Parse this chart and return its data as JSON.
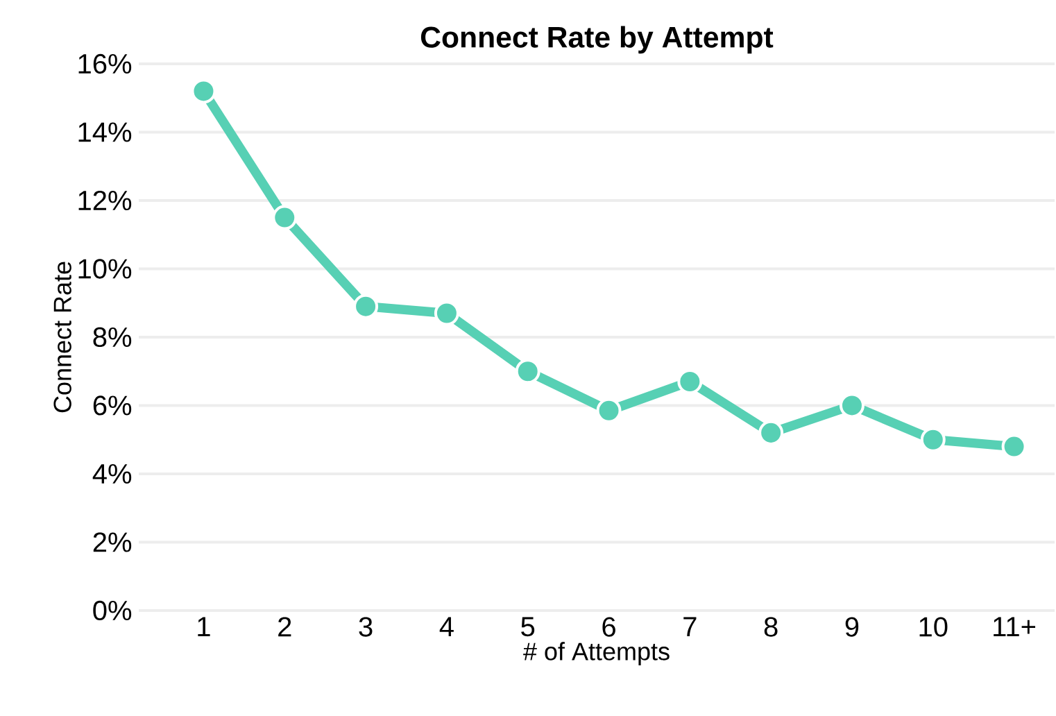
{
  "chart_data": {
    "type": "line",
    "title": "Connect Rate by Attempt",
    "xlabel": "# of Attempts",
    "ylabel": "Connect Rate",
    "categories": [
      "1",
      "2",
      "3",
      "4",
      "5",
      "6",
      "7",
      "8",
      "9",
      "10",
      "11+"
    ],
    "series": [
      {
        "color": "#57d0b4",
        "values": [
          15.2,
          11.5,
          8.9,
          8.7,
          7.0,
          5.85,
          6.7,
          5.2,
          6.0,
          5.0,
          4.8
        ]
      }
    ],
    "ylim": [
      0,
      16
    ],
    "yticks": [
      {
        "value": 0,
        "label": "0%"
      },
      {
        "value": 2,
        "label": "2%"
      },
      {
        "value": 4,
        "label": "4%"
      },
      {
        "value": 6,
        "label": "6%"
      },
      {
        "value": 8,
        "label": "8%"
      },
      {
        "value": 10,
        "label": "10%"
      },
      {
        "value": 12,
        "label": "12%"
      },
      {
        "value": 14,
        "label": "14%"
      },
      {
        "value": 16,
        "label": "16%"
      }
    ],
    "grid": "y",
    "marker": "circle",
    "line_style": "solid"
  }
}
